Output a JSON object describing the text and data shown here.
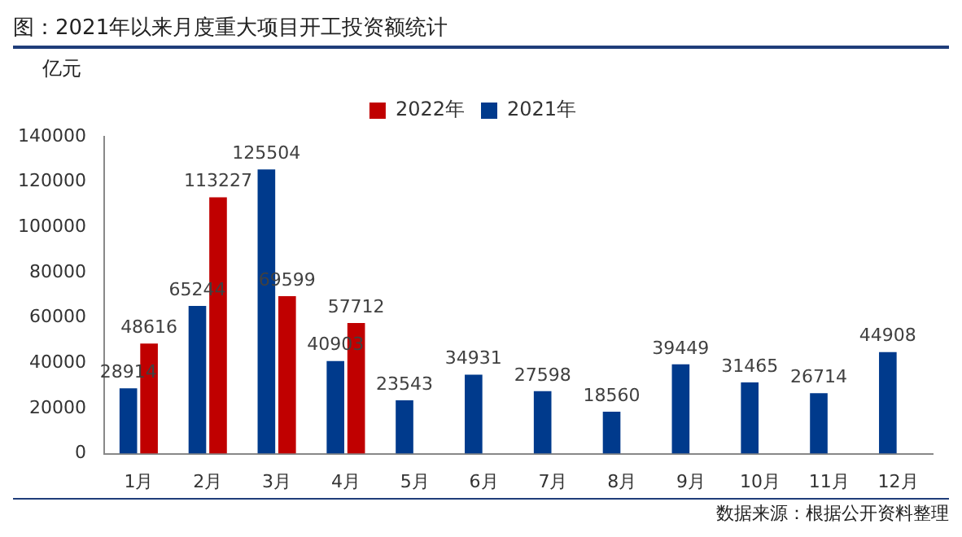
{
  "chart_data": {
    "type": "bar",
    "title": "图：2021年以来月度重大项目开工投资额统计",
    "ylabel": "亿元",
    "categories": [
      "1月",
      "2月",
      "3月",
      "4月",
      "5月",
      "6月",
      "7月",
      "8月",
      "9月",
      "10月",
      "11月",
      "12月"
    ],
    "series": [
      {
        "name": "2021年",
        "color": "#003a8c",
        "values": [
          28914,
          65244,
          125504,
          40903,
          23543,
          34931,
          27598,
          18560,
          39449,
          31465,
          26714,
          44908
        ]
      },
      {
        "name": "2022年",
        "color": "#c00000",
        "values": [
          48616,
          113227,
          69599,
          57712,
          null,
          null,
          null,
          null,
          null,
          null,
          null,
          null
        ]
      }
    ],
    "ylim": [
      0,
      140000
    ],
    "yticks": [
      0,
      20000,
      40000,
      60000,
      80000,
      100000,
      120000,
      140000
    ],
    "data_labels": true,
    "legend": "top",
    "grid": false,
    "annotations": [
      "数据来源：根据公开资料整理"
    ]
  }
}
